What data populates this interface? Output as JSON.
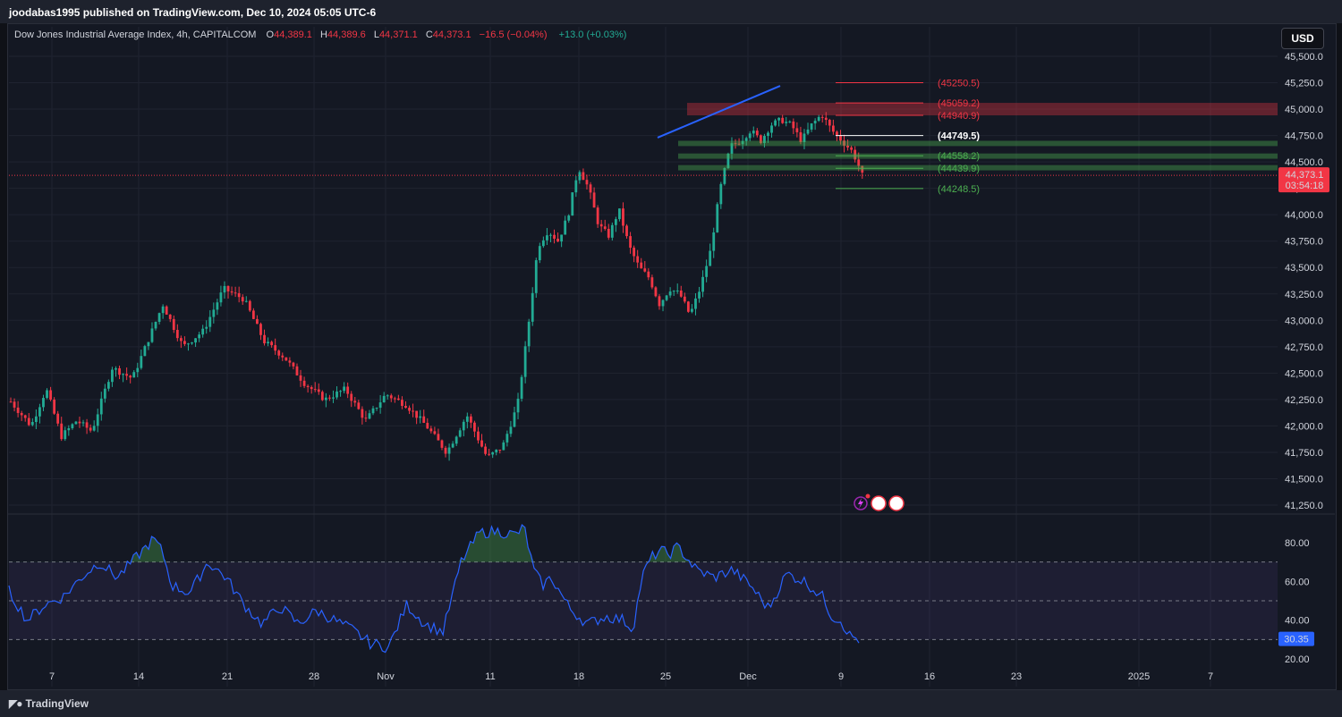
{
  "publisher_line": "joodabas1995 published on TradingView.com, Dec 10, 2024 05:05 UTC-6",
  "legend": {
    "symbol": "Dow Jones Industrial Average Index, 4h, CAPITALCOM",
    "o_label": "O",
    "o": "44,389.1",
    "h_label": "H",
    "h": "44,389.6",
    "l_label": "L",
    "l": "44,371.1",
    "c_label": "C",
    "c": "44,373.1",
    "change": "−16.5 (−0.04%)",
    "extra": "+13.0 (+0.03%)"
  },
  "currency_button": "USD",
  "footer_brand": "TradingView",
  "colors": {
    "up": "#22ab94",
    "down": "#f23645",
    "rsi": "#2962ff",
    "background": "#141823",
    "price_line": "#f23645",
    "trendline": "#2962ff"
  },
  "chart_data": [
    {
      "type": "candlestick",
      "timeframe": "4h",
      "price_axis_ticks": [
        45500,
        45250,
        45000,
        44750,
        44500,
        44250,
        44000,
        43750,
        43500,
        43250,
        43000,
        42750,
        42500,
        42250,
        42000,
        41750,
        41500,
        41250
      ],
      "price_axis_labels": [
        "45,500.0",
        "45,250.0",
        "45,000.0",
        "44,750.0",
        "44,500.0",
        "44,250.0",
        "44,000.0",
        "43,750.0",
        "43,500.0",
        "43,250.0",
        "43,000.0",
        "42,750.0",
        "42,500.0",
        "42,250.0",
        "42,000.0",
        "41,750.0",
        "41,500.0",
        "41,250.0"
      ],
      "ylim": [
        41150,
        45720
      ],
      "x_axis_labels": [
        "7",
        "14",
        "21",
        "28",
        "Nov",
        "11",
        "18",
        "25",
        "Dec",
        "9",
        "16",
        "23",
        "2025",
        "7"
      ],
      "current_price": {
        "value": 44373.1,
        "label": "44,373.1",
        "countdown": "03:54:18"
      },
      "price_path": [
        [
          0,
          42230
        ],
        [
          4,
          42000
        ],
        [
          7,
          42350
        ],
        [
          10,
          41900
        ],
        [
          13,
          42050
        ],
        [
          16,
          41950
        ],
        [
          20,
          42550
        ],
        [
          24,
          42450
        ],
        [
          27,
          42800
        ],
        [
          30,
          43150
        ],
        [
          34,
          42750
        ],
        [
          38,
          42900
        ],
        [
          42,
          43300
        ],
        [
          46,
          43200
        ],
        [
          50,
          42800
        ],
        [
          54,
          42650
        ],
        [
          58,
          42400
        ],
        [
          62,
          42250
        ],
        [
          66,
          42350
        ],
        [
          70,
          42050
        ],
        [
          74,
          42300
        ],
        [
          78,
          42200
        ],
        [
          82,
          42000
        ],
        [
          86,
          41750
        ],
        [
          90,
          42100
        ],
        [
          94,
          41700
        ],
        [
          97,
          41800
        ],
        [
          100,
          42200
        ],
        [
          102,
          42900
        ],
        [
          104,
          43700
        ],
        [
          106,
          43850
        ],
        [
          108,
          43750
        ],
        [
          110,
          44000
        ],
        [
          112,
          44450
        ],
        [
          114,
          44250
        ],
        [
          116,
          43900
        ],
        [
          118,
          43800
        ],
        [
          120,
          44050
        ],
        [
          122,
          43700
        ],
        [
          124,
          43500
        ],
        [
          126,
          43400
        ],
        [
          128,
          43150
        ],
        [
          130,
          43300
        ],
        [
          132,
          43250
        ],
        [
          134,
          43050
        ],
        [
          136,
          43300
        ],
        [
          138,
          43650
        ],
        [
          140,
          44250
        ],
        [
          142,
          44650
        ],
        [
          144,
          44700
        ],
        [
          146,
          44800
        ],
        [
          148,
          44700
        ],
        [
          150,
          44850
        ],
        [
          152,
          44900
        ],
        [
          154,
          44850
        ],
        [
          156,
          44700
        ],
        [
          158,
          44850
        ],
        [
          160,
          44950
        ],
        [
          162,
          44800
        ],
        [
          164,
          44700
        ],
        [
          166,
          44600
        ],
        [
          167,
          44500
        ],
        [
          168,
          44373
        ]
      ],
      "trendline": {
        "from": [
          153,
          44730
        ],
        "to": [
          180,
          45220
        ]
      },
      "horizontal_levels": [
        {
          "label": "(45250.5)",
          "value": 45250.5,
          "color": "#f23645"
        },
        {
          "label": "(45059.2)",
          "value": 45059.2,
          "color": "#f23645"
        },
        {
          "label": "(44940.9)",
          "value": 44940.9,
          "color": "#f23645"
        },
        {
          "label": "(44749.5)",
          "value": 44749.5,
          "color": "#ffffff"
        },
        {
          "label": "(44558.2)",
          "value": 44558.2,
          "color": "#4caf50"
        },
        {
          "label": "(44439.9)",
          "value": 44439.9,
          "color": "#4caf50"
        },
        {
          "label": "(44248.5)",
          "value": 44248.5,
          "color": "#4caf50"
        }
      ],
      "zones": [
        {
          "from": 45059.2,
          "to": 44940.9,
          "color": "#f23645"
        },
        {
          "from": 44700,
          "to": 44650,
          "color": "#4caf50"
        },
        {
          "from": 44580,
          "to": 44530,
          "color": "#4caf50"
        },
        {
          "from": 44470,
          "to": 44420,
          "color": "#4caf50"
        }
      ]
    },
    {
      "type": "line",
      "indicator": "RSI",
      "axis_ticks": [
        80,
        60,
        40,
        20
      ],
      "axis_labels": [
        "80.00",
        "60.00",
        "40.00",
        "20.00"
      ],
      "ylim": [
        16,
        92
      ],
      "bands": {
        "upper": 70,
        "middle": 50,
        "lower": 30
      },
      "current_value": {
        "value": 30.35,
        "label": "30.35"
      },
      "values_path": [
        [
          0,
          55
        ],
        [
          4,
          40
        ],
        [
          8,
          48
        ],
        [
          12,
          52
        ],
        [
          16,
          62
        ],
        [
          20,
          70
        ],
        [
          24,
          62
        ],
        [
          28,
          72
        ],
        [
          32,
          82
        ],
        [
          34,
          75
        ],
        [
          36,
          58
        ],
        [
          40,
          54
        ],
        [
          44,
          70
        ],
        [
          48,
          62
        ],
        [
          52,
          48
        ],
        [
          56,
          38
        ],
        [
          60,
          47
        ],
        [
          64,
          38
        ],
        [
          68,
          45
        ],
        [
          72,
          40
        ],
        [
          76,
          35
        ],
        [
          80,
          28
        ],
        [
          84,
          26
        ],
        [
          88,
          48
        ],
        [
          92,
          38
        ],
        [
          96,
          34
        ],
        [
          100,
          70
        ],
        [
          104,
          85
        ],
        [
          108,
          86
        ],
        [
          112,
          84
        ],
        [
          114,
          88
        ],
        [
          116,
          66
        ],
        [
          118,
          58
        ],
        [
          120,
          62
        ],
        [
          124,
          46
        ],
        [
          128,
          38
        ],
        [
          132,
          42
        ],
        [
          136,
          40
        ],
        [
          138,
          35
        ],
        [
          140,
          62
        ],
        [
          142,
          72
        ],
        [
          144,
          76
        ],
        [
          146,
          74
        ],
        [
          148,
          78
        ],
        [
          150,
          72
        ],
        [
          152,
          66
        ],
        [
          156,
          62
        ],
        [
          160,
          66
        ],
        [
          164,
          58
        ],
        [
          166,
          52
        ],
        [
          168,
          46
        ],
        [
          172,
          64
        ],
        [
          176,
          60
        ],
        [
          180,
          52
        ],
        [
          182,
          42
        ],
        [
          184,
          40
        ],
        [
          186,
          32
        ],
        [
          188,
          30
        ]
      ]
    }
  ]
}
